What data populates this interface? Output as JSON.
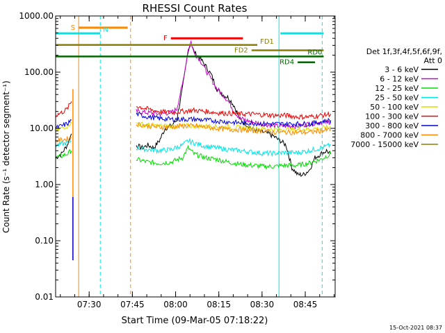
{
  "chart_data": {
    "type": "line",
    "title": "RHESSI Count Rates",
    "xlabel": "Start Time (09-Mar-05 07:18:22)",
    "ylabel": "Count Rate (s⁻¹ detector segment⁻¹)",
    "yscale": "log",
    "ylim": [
      0.01,
      1000
    ],
    "xlim_minutes_after_0718_22": [
      0,
      97
    ],
    "yticks": [
      "1000.00",
      "100.00",
      "10.00",
      "1.00",
      "0.10",
      "0.01"
    ],
    "xticks": [
      "07:30",
      "07:45",
      "08:00",
      "08:15",
      "08:30",
      "08:45"
    ],
    "grid": false,
    "legend": {
      "placement": "right",
      "header": [
        "Det 1f,3f,4f,5f,6f,9f,",
        "Att 0"
      ],
      "entries": [
        {
          "label": "3 - 6 keV",
          "color": "#000000"
        },
        {
          "label": "6 - 12 keV",
          "color": "#cc00cc"
        },
        {
          "label": "12 - 25 keV",
          "color": "#00dd00"
        },
        {
          "label": "25 - 50 keV",
          "color": "#00e5e5"
        },
        {
          "label": "50 - 100 keV",
          "color": "#dddd00"
        },
        {
          "label": "100 - 300 keV",
          "color": "#ee0000"
        },
        {
          "label": "300 - 800 keV",
          "color": "#0000dd"
        },
        {
          "label": "800 - 7000 keV",
          "color": "#ff8800"
        },
        {
          "label": "7000 - 15000 keV",
          "color": "#8b7d00"
        }
      ]
    },
    "series": [
      {
        "name": "3 - 6 keV",
        "color": "#000000",
        "segments": [
          {
            "x": [
              0,
              2,
              4,
              5.5
            ],
            "y": [
              3,
              3.5,
              5,
              8
            ]
          },
          {
            "x": [
              28,
              30,
              32,
              34,
              36,
              38,
              40,
              42,
              44,
              45,
              46,
              47,
              48,
              50,
              52,
              54,
              56,
              58,
              60,
              62,
              64,
              66,
              68,
              70,
              72,
              74,
              76,
              78,
              80,
              82,
              84,
              86,
              88,
              90,
              92,
              94,
              95.5
            ],
            "y": [
              5,
              4.5,
              5,
              4.5,
              6,
              10,
              11,
              14,
              50,
              110,
              250,
              330,
              230,
              180,
              130,
              90,
              50,
              40,
              35,
              25,
              14,
              12,
              10,
              9,
              8.5,
              8,
              7,
              6,
              5,
              2,
              1.5,
              1.5,
              1.8,
              3,
              3.5,
              4,
              3.5
            ]
          }
        ]
      },
      {
        "name": "6 - 12 keV",
        "color": "#cc00cc",
        "segments": [
          {
            "x": [
              28,
              32,
              36,
              40,
              42,
              44,
              45,
              46,
              47,
              48,
              50,
              52,
              54,
              56,
              58,
              60,
              62,
              64,
              66,
              68,
              72,
              76,
              80,
              84,
              88,
              92,
              95.5
            ],
            "y": [
              20,
              19,
              18,
              19,
              22,
              60,
              120,
              260,
              350,
              220,
              170,
              110,
              75,
              50,
              40,
              30,
              20,
              15,
              14,
              13,
              12,
              11,
              11,
              11,
              12,
              13,
              13
            ]
          }
        ]
      },
      {
        "name": "12 - 25 keV",
        "color": "#00dd00",
        "segments": [
          {
            "x": [
              0,
              2,
              4,
              5.5
            ],
            "y": [
              3,
              3.2,
              3.5,
              4
            ]
          },
          {
            "x": [
              28,
              32,
              36,
              40,
              44,
              46,
              48,
              52,
              56,
              60,
              64,
              68,
              72,
              76,
              80,
              84,
              88,
              92,
              95.5
            ],
            "y": [
              2.8,
              2.5,
              2.4,
              2.5,
              3,
              4.5,
              3.5,
              3,
              2.8,
              2.5,
              2.3,
              2.2,
              2.1,
              2.1,
              2.2,
              2.2,
              2.4,
              2.8,
              3.5
            ]
          }
        ]
      },
      {
        "name": "25 - 50 keV",
        "color": "#00e5e5",
        "segments": [
          {
            "x": [
              0,
              2,
              4,
              5.5
            ],
            "y": [
              5,
              5.2,
              5.5,
              6
            ]
          },
          {
            "x": [
              28,
              32,
              36,
              40,
              44,
              46,
              48,
              52,
              56,
              60,
              64,
              68,
              72,
              76,
              80,
              84,
              88,
              92,
              95.5
            ],
            "y": [
              4.5,
              4.2,
              4,
              4.2,
              5,
              6,
              5.5,
              4.8,
              4.5,
              4.2,
              4,
              3.8,
              3.6,
              3.6,
              3.7,
              3.7,
              4,
              4.5,
              5
            ]
          }
        ]
      },
      {
        "name": "50 - 100 keV",
        "color": "#dddd00",
        "segments": [
          {
            "x": [
              0,
              2,
              4,
              5.5
            ],
            "y": [
              9,
              10,
              11,
              13
            ]
          },
          {
            "x": [
              28,
              36,
              44,
              52,
              60,
              68,
              76,
              84,
              92,
              95.5
            ],
            "y": [
              12,
              11,
              11,
              11,
              10.5,
              10,
              9.5,
              9.5,
              10,
              10.5
            ]
          }
        ]
      },
      {
        "name": "100 - 300 keV",
        "color": "#ee0000",
        "segments": [
          {
            "x": [
              0,
              2,
              4,
              5.5
            ],
            "y": [
              17,
              19,
              22,
              30
            ]
          },
          {
            "x": [
              28,
              32,
              36,
              40,
              44,
              48,
              52,
              56,
              60,
              64,
              68,
              72,
              76,
              80,
              84,
              88,
              92,
              95.5
            ],
            "y": [
              25,
              22,
              20,
              19,
              20,
              21,
              20,
              19,
              18.5,
              18,
              18,
              17.5,
              17,
              17,
              16,
              16,
              17,
              18
            ]
          }
        ]
      },
      {
        "name": "300 - 800 keV",
        "color": "#0000dd",
        "segments": [
          {
            "x": [
              0,
              2,
              4,
              5.5
            ],
            "y": [
              10,
              11,
              12,
              14
            ]
          },
          {
            "x": [
              28,
              32,
              36,
              40,
              44,
              48,
              52,
              56,
              60,
              64,
              68,
              72,
              76,
              80,
              84,
              88,
              92,
              95.5
            ],
            "y": [
              18,
              16,
              15,
              14.5,
              14.5,
              14.5,
              14,
              13.5,
              13,
              12.5,
              12.5,
              12,
              12,
              12,
              12,
              12,
              13,
              14
            ]
          }
        ]
      },
      {
        "name": "800 - 7000 keV",
        "color": "#ff8800",
        "segments": [
          {
            "x": [
              0,
              2,
              4,
              5.5
            ],
            "y": [
              6,
              6.2,
              6.5,
              7
            ]
          },
          {
            "x": [
              28,
              32,
              36,
              40,
              44,
              48,
              52,
              56,
              60,
              64,
              68,
              72,
              76,
              80,
              84,
              88,
              92,
              95.5
            ],
            "y": [
              12,
              11,
              10.5,
              10.5,
              11,
              11,
              10.5,
              10,
              9.5,
              9.5,
              9,
              9,
              8.5,
              8.5,
              8.5,
              8.5,
              9,
              9.5
            ]
          }
        ]
      }
    ],
    "vertical_lines": [
      {
        "x": 8,
        "color": "#ff8800",
        "dashed": false
      },
      {
        "x": 15.5,
        "color": "#00e5e5",
        "dashed": true
      },
      {
        "x": 26,
        "color": "#ff8800",
        "dashed": true
      },
      {
        "x": 77.5,
        "color": "#00e5e5",
        "dashed": false
      },
      {
        "x": 92.5,
        "color": "#00e5e5",
        "dashed": true
      }
    ],
    "spikes": [
      {
        "x": 6,
        "y0": 0.045,
        "y1": 50,
        "color": "#ff8800"
      },
      {
        "x": 6,
        "y0": 0.045,
        "y1": 0.6,
        "color": "#0000dd"
      }
    ],
    "interval_bars": [
      {
        "label": "S",
        "x0": 8,
        "x1": 25,
        "y": 620,
        "color": "#ff8800",
        "label_pos": "left",
        "thick": true
      },
      {
        "label": "N",
        "x0": 0,
        "x1": 15.5,
        "y": 490,
        "color": "#00e5e5",
        "label_pos": "right",
        "thick": true
      },
      {
        "label": "N",
        "x0": 78,
        "x1": 93,
        "y": 490,
        "color": "#00e5e5",
        "label_pos": "none",
        "thick": true
      },
      {
        "label": "F",
        "x0": 40,
        "x1": 65,
        "y": 400,
        "color": "#ee0000",
        "label_pos": "left",
        "thick": true
      },
      {
        "label": "FD1",
        "x0": 0,
        "x1": 70,
        "y": 305,
        "color": "#8b7d00",
        "label_pos": "right",
        "thick": false
      },
      {
        "label": "FD2",
        "x0": 68,
        "x1": 93,
        "y": 245,
        "color": "#8b7d00",
        "label_pos": "left",
        "thick": false
      },
      {
        "label": "RD0",
        "x0": 0,
        "x1": 93,
        "y": 190,
        "color": "#006600",
        "label_pos": "right-end",
        "thick": false
      },
      {
        "label": "RD4",
        "x0": 84,
        "x1": 90,
        "y": 150,
        "color": "#006600",
        "label_pos": "left",
        "thick": false
      }
    ]
  },
  "footer": {
    "timestamp": "15-Oct-2021 08:37"
  }
}
